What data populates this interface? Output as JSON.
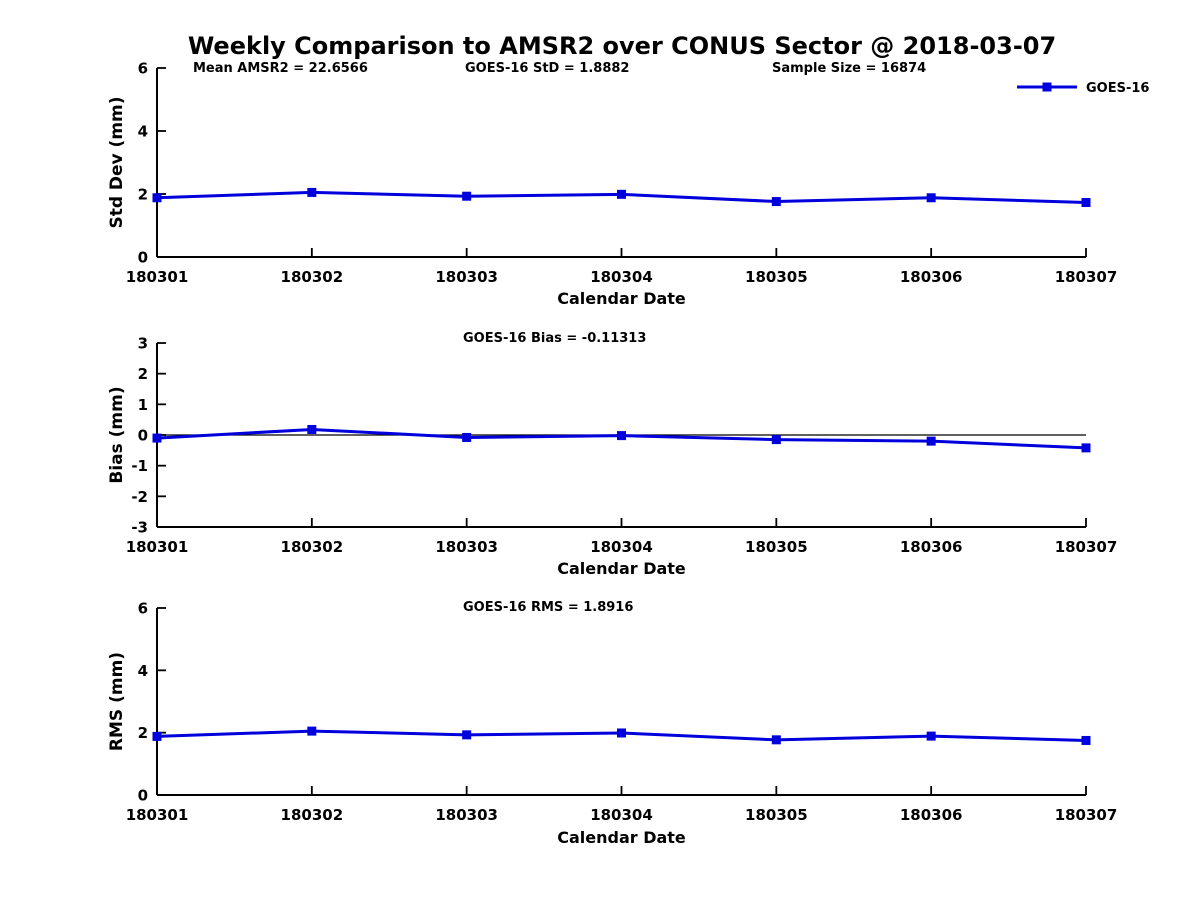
{
  "title": "Weekly Comparison to AMSR2 over CONUS Sector @ 2018-03-07",
  "annotations": {
    "mean_amsr2": "Mean AMSR2 = 22.6566",
    "goes16_std": "GOES-16 StD = 1.8882",
    "sample_size": "Sample Size = 16874"
  },
  "legend": {
    "label": "GOES-16",
    "position": "top-right",
    "color": "#0000dd"
  },
  "xlabel": "Calendar Date",
  "colors": {
    "line": "#0000dd",
    "axis": "#000000",
    "background": "#ffffff"
  },
  "categories": [
    "180301",
    "180302",
    "180303",
    "180304",
    "180305",
    "180306",
    "180307"
  ],
  "chart_data": [
    {
      "type": "line",
      "name": "std-dev",
      "ylabel": "Std Dev (mm)",
      "ylim": [
        0,
        6
      ],
      "yticks": [
        0,
        2,
        4,
        6
      ],
      "categories": [
        "180301",
        "180302",
        "180303",
        "180304",
        "180305",
        "180306",
        "180307"
      ],
      "series": [
        {
          "name": "GOES-16",
          "values": [
            1.88,
            2.05,
            1.93,
            1.99,
            1.76,
            1.88,
            1.73
          ]
        }
      ],
      "stats": {
        "mean_amsr2": 22.6566,
        "goes16_std": 1.8882,
        "sample_size": 16874
      },
      "legend_position": "top-right",
      "grid": false
    },
    {
      "type": "line",
      "name": "bias",
      "ylabel": "Bias (mm)",
      "ylim": [
        -3,
        3
      ],
      "yticks": [
        -3,
        -2,
        -1,
        0,
        1,
        2,
        3
      ],
      "zero_line": true,
      "annotation": "GOES-16 Bias  = -0.11313",
      "categories": [
        "180301",
        "180302",
        "180303",
        "180304",
        "180305",
        "180306",
        "180307"
      ],
      "series": [
        {
          "name": "GOES-16",
          "values": [
            -0.1,
            0.18,
            -0.08,
            -0.02,
            -0.15,
            -0.2,
            -0.42
          ]
        }
      ],
      "stats": {
        "goes16_bias": -0.11313
      },
      "grid": false
    },
    {
      "type": "line",
      "name": "rms",
      "ylabel": "RMS (mm)",
      "ylim": [
        0,
        6
      ],
      "yticks": [
        0,
        2,
        4,
        6
      ],
      "annotation": "GOES-16 RMS = 1.8916",
      "categories": [
        "180301",
        "180302",
        "180303",
        "180304",
        "180305",
        "180306",
        "180307"
      ],
      "series": [
        {
          "name": "GOES-16",
          "values": [
            1.88,
            2.05,
            1.93,
            1.99,
            1.77,
            1.89,
            1.75
          ]
        }
      ],
      "stats": {
        "goes16_rms": 1.8916
      },
      "grid": false
    }
  ]
}
